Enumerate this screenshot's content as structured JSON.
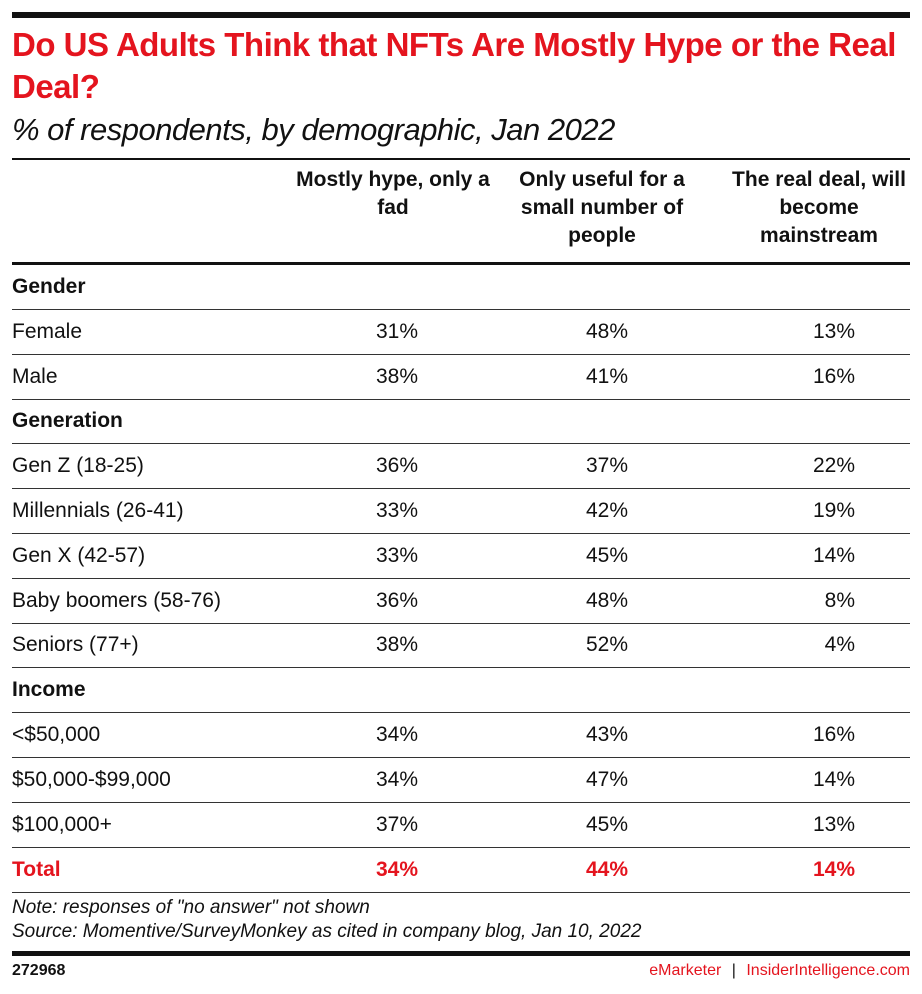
{
  "chart_data": {
    "type": "table",
    "title": "Do US Adults Think that NFTs Are Mostly Hype or the Real Deal?",
    "subtitle": "% of respondents, by demographic, Jan 2022",
    "columns": [
      "Mostly hype, only a fad",
      "Only useful for a small number of people",
      "The real deal, will become mainstream"
    ],
    "rows": [
      {
        "label": "Gender",
        "section": true
      },
      {
        "label": "Female",
        "values": [
          "31%",
          "48%",
          "13%"
        ]
      },
      {
        "label": "Male",
        "values": [
          "38%",
          "41%",
          "16%"
        ]
      },
      {
        "label": "Generation",
        "section": true
      },
      {
        "label": "Gen Z (18-25)",
        "values": [
          "36%",
          "37%",
          "22%"
        ]
      },
      {
        "label": "Millennials (26-41)",
        "values": [
          "33%",
          "42%",
          "19%"
        ]
      },
      {
        "label": "Gen X (42-57)",
        "values": [
          "33%",
          "45%",
          "14%"
        ]
      },
      {
        "label": "Baby boomers (58-76)",
        "values": [
          "36%",
          "48%",
          "8%"
        ]
      },
      {
        "label": "Seniors (77+)",
        "values": [
          "38%",
          "52%",
          "4%"
        ]
      },
      {
        "label": "Income",
        "section": true
      },
      {
        "label": "<$50,000",
        "values": [
          "34%",
          "43%",
          "16%"
        ]
      },
      {
        "label": "$50,000-$99,000",
        "values": [
          "34%",
          "47%",
          "14%"
        ]
      },
      {
        "label": "$100,000+",
        "values": [
          "37%",
          "45%",
          "13%"
        ]
      },
      {
        "label": "Total",
        "values": [
          "34%",
          "44%",
          "14%"
        ],
        "total": true
      }
    ],
    "note": "Note: responses of \"no answer\" not shown",
    "source": "Source: Momentive/SurveyMonkey as cited in company blog, Jan 10, 2022"
  },
  "footer": {
    "id": "272968",
    "brand": "eMarketer",
    "separator": "|",
    "site": "InsiderIntelligence.com"
  },
  "colors": {
    "accent": "#e4141e",
    "text": "#111111"
  }
}
